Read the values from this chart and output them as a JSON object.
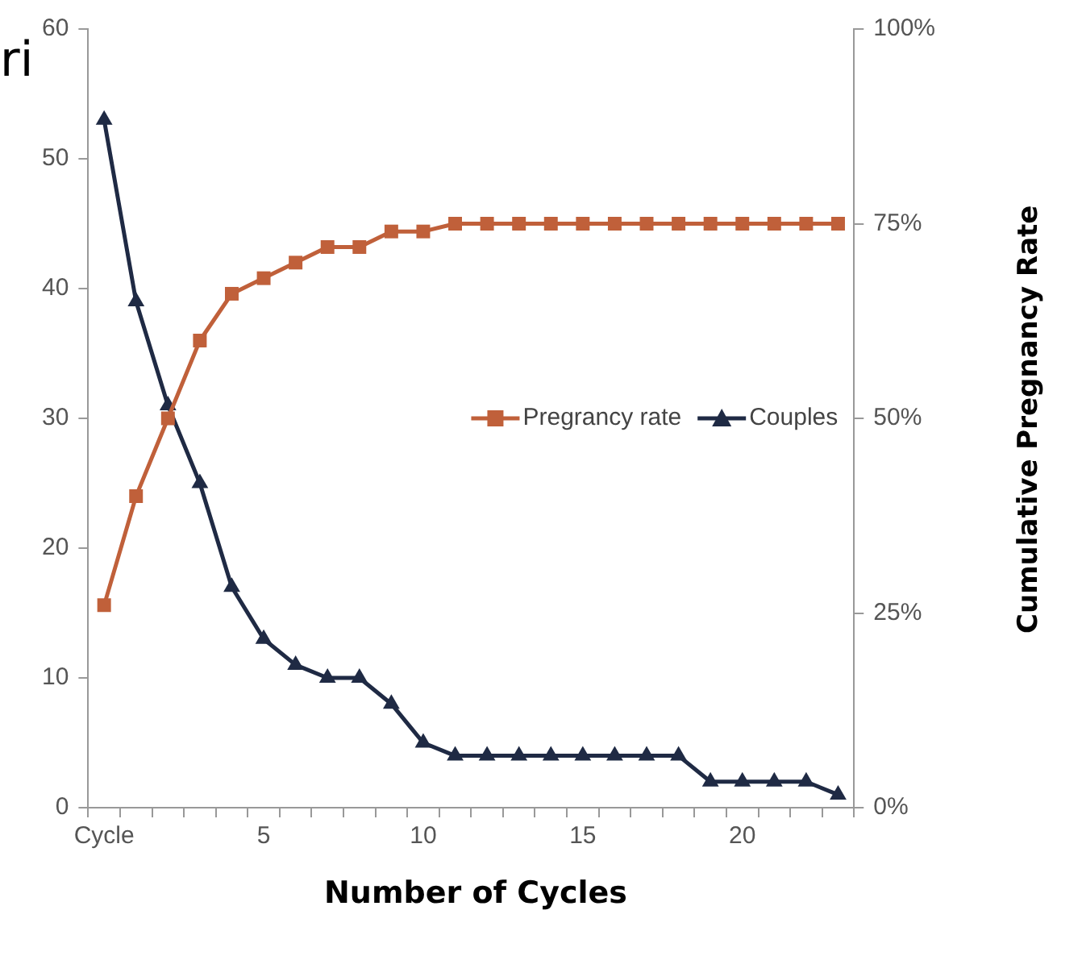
{
  "chart_data": {
    "type": "line",
    "xlabel": "Number of Cycles",
    "y2label": "Cumulative Pregnancy Rate",
    "annotations": [
      "ri"
    ],
    "categories": [
      "Cycle",
      null,
      null,
      null,
      null,
      "5",
      null,
      null,
      null,
      null,
      "10",
      null,
      null,
      null,
      null,
      "15",
      null,
      null,
      null,
      null,
      "20",
      null,
      null,
      null
    ],
    "series": [
      {
        "name": "Pregrancy rate",
        "color": "#c0603a",
        "axis": "y2",
        "marker": "square",
        "values": [
          26,
          40,
          50,
          60,
          66,
          68,
          70,
          72,
          72,
          74,
          74,
          75,
          75,
          75,
          75,
          75,
          75,
          75,
          75,
          75,
          75,
          75,
          75,
          75
        ]
      },
      {
        "name": "Couples",
        "color": "#1f2a44",
        "marker": "triangle",
        "values": [
          53,
          39,
          31,
          25,
          17,
          13,
          11,
          10,
          10,
          8,
          5,
          4,
          4,
          4,
          4,
          4,
          4,
          4,
          4,
          2,
          2,
          2,
          2,
          1
        ]
      }
    ],
    "ylim": [
      0,
      60
    ],
    "yticks": [
      0,
      10,
      20,
      30,
      40,
      50,
      60
    ],
    "y2lim": [
      0,
      100
    ],
    "y2ticks": [
      {
        "value": 0,
        "label": "0%"
      },
      {
        "value": 25,
        "label": "25%"
      },
      {
        "value": 50,
        "label": "50%"
      },
      {
        "value": 75,
        "label": "75%"
      },
      {
        "value": 100,
        "label": "100%"
      }
    ],
    "grid": false,
    "legend": "right",
    "line_style": "solid"
  }
}
